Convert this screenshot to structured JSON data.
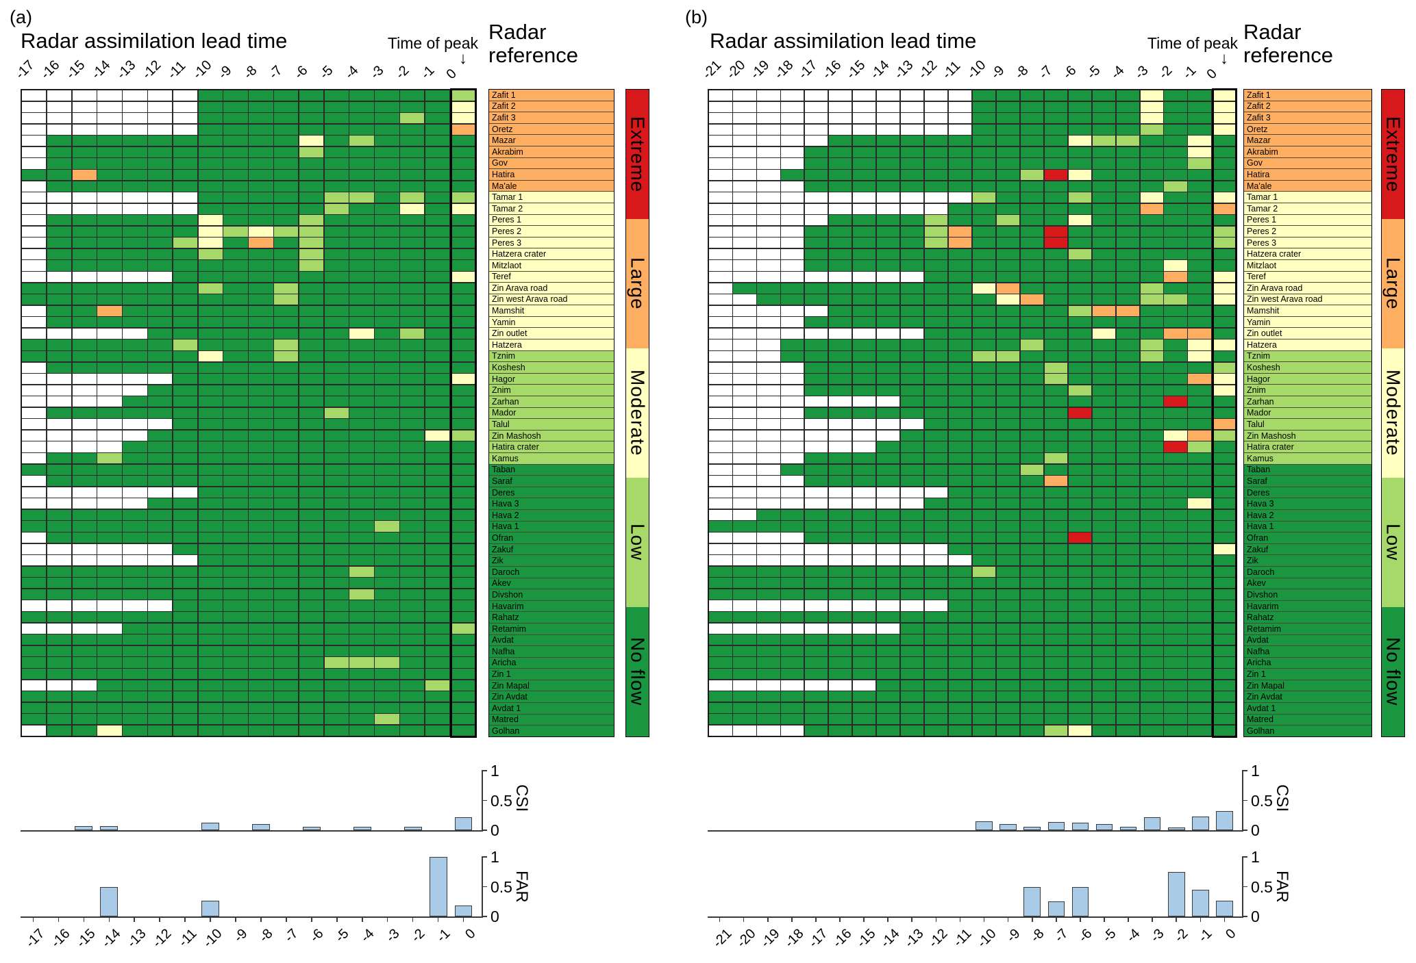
{
  "figure_tags": {
    "a": "(a)",
    "b": "(b)"
  },
  "titles": {
    "lead_time": "Radar assimilation lead time",
    "time_of_peak": "Time of peak",
    "ref_header_line1": "Radar",
    "ref_header_line2": "reference",
    "arrow_glyph": "↓"
  },
  "axis": {
    "ytick_labels": [
      "0",
      "0.5",
      "1"
    ],
    "yticks": [
      0,
      0.5,
      1
    ],
    "csi_label": "CSI",
    "far_label": "FAR"
  },
  "legend": {
    "labels": [
      "Extreme",
      "Large",
      "Moderate",
      "Low",
      "No flow"
    ],
    "colors": [
      "#D7191C",
      "#FDAE61",
      "#FFFFBF",
      "#A6D96A",
      "#1A9641"
    ]
  },
  "cell_colors": {
    "W": "#FFFFFF",
    "G": "#1A9641",
    "L": "#A6D96A",
    "Y": "#FFFFBF",
    "O": "#FDAE61",
    "R": "#D7191C"
  },
  "cell_meaning": {
    "W": "no data",
    "G": "No flow",
    "L": "Low",
    "Y": "Moderate",
    "O": "Large",
    "R": "Extreme"
  },
  "ref_colors": {
    "large": "#FDAE61",
    "moderate": "#FFFFBF",
    "low": "#A6D96A",
    "noflow": "#1A9641"
  },
  "stations": [
    {
      "name": "Zafit 1",
      "ref": "large"
    },
    {
      "name": "Zafit 2",
      "ref": "large"
    },
    {
      "name": "Zafit 3",
      "ref": "large"
    },
    {
      "name": "Oretz",
      "ref": "large"
    },
    {
      "name": "Mazar",
      "ref": "large"
    },
    {
      "name": "Akrabim",
      "ref": "large"
    },
    {
      "name": "Gov",
      "ref": "large"
    },
    {
      "name": "Hatira",
      "ref": "large"
    },
    {
      "name": "Ma'ale",
      "ref": "large"
    },
    {
      "name": "Tamar 1",
      "ref": "moderate"
    },
    {
      "name": "Tamar 2",
      "ref": "moderate"
    },
    {
      "name": "Peres 1",
      "ref": "moderate"
    },
    {
      "name": "Peres 2",
      "ref": "moderate"
    },
    {
      "name": "Peres 3",
      "ref": "moderate"
    },
    {
      "name": "Hatzera crater",
      "ref": "moderate"
    },
    {
      "name": "Mitzlaot",
      "ref": "moderate"
    },
    {
      "name": "Teref",
      "ref": "moderate"
    },
    {
      "name": "Zin Arava road",
      "ref": "moderate"
    },
    {
      "name": "Zin west Arava road",
      "ref": "moderate"
    },
    {
      "name": "Mamshit",
      "ref": "moderate"
    },
    {
      "name": "Yamin",
      "ref": "moderate"
    },
    {
      "name": "Zin outlet",
      "ref": "moderate"
    },
    {
      "name": "Hatzera",
      "ref": "moderate"
    },
    {
      "name": "Tznim",
      "ref": "low"
    },
    {
      "name": "Koshesh",
      "ref": "low"
    },
    {
      "name": "Hagor",
      "ref": "low"
    },
    {
      "name": "Znim",
      "ref": "low"
    },
    {
      "name": "Zarhan",
      "ref": "low"
    },
    {
      "name": "Mador",
      "ref": "low"
    },
    {
      "name": "Talul",
      "ref": "low"
    },
    {
      "name": "Zin Mashosh",
      "ref": "low"
    },
    {
      "name": "Hatira crater",
      "ref": "low"
    },
    {
      "name": "Kamus",
      "ref": "low"
    },
    {
      "name": "Taban",
      "ref": "noflow"
    },
    {
      "name": "Saraf",
      "ref": "noflow"
    },
    {
      "name": "Deres",
      "ref": "noflow"
    },
    {
      "name": "Hava 3",
      "ref": "noflow"
    },
    {
      "name": "Hava 2",
      "ref": "noflow"
    },
    {
      "name": "Hava 1",
      "ref": "noflow"
    },
    {
      "name": "Ofran",
      "ref": "noflow"
    },
    {
      "name": "Zakuf",
      "ref": "noflow"
    },
    {
      "name": "Zik",
      "ref": "noflow"
    },
    {
      "name": "Daroch",
      "ref": "noflow"
    },
    {
      "name": "Akev",
      "ref": "noflow"
    },
    {
      "name": "Divshon",
      "ref": "noflow"
    },
    {
      "name": "Havarim",
      "ref": "noflow"
    },
    {
      "name": "Rahatz",
      "ref": "noflow"
    },
    {
      "name": "Retamim",
      "ref": "noflow"
    },
    {
      "name": "Avdat",
      "ref": "noflow"
    },
    {
      "name": "Nafha",
      "ref": "noflow"
    },
    {
      "name": "Aricha",
      "ref": "noflow"
    },
    {
      "name": "Zin 1",
      "ref": "noflow"
    },
    {
      "name": "Zin Mapal",
      "ref": "noflow"
    },
    {
      "name": "Zin Avdat",
      "ref": "noflow"
    },
    {
      "name": "Avdat 1",
      "ref": "noflow"
    },
    {
      "name": "Matred",
      "ref": "noflow"
    },
    {
      "name": "Golhan",
      "ref": "noflow"
    }
  ],
  "chart_data": [
    {
      "type": "heatmap",
      "panel": "a",
      "title": "Radar assimilation lead time",
      "x": [
        -17,
        -16,
        -15,
        -14,
        -13,
        -12,
        -11,
        -10,
        -9,
        -8,
        -7,
        -6,
        -5,
        -4,
        -3,
        -2,
        -1,
        0
      ],
      "rows": [
        "WWWWWWWGGGGGGGGGGL",
        "WWWWWWWGGGGGGGGGGY",
        "WWWWWWWGGGGGGGGLGY",
        "WWWWWWWGGGGGGGGGGO",
        "WGGGGGGGGGGYGLGGGG",
        "WGGGGGGGGGGLGGGGGG",
        "WGGGGGGGGGGGGGGGGG",
        "GGOGGGGGGGGGGGGGGG",
        "WGGGGGGGGGGGGGGGGG",
        "WWWWWWWGGGGGLLGLGL",
        "WWWWWWWGGGGGLGGYGY",
        "WGGGGGGYGGGLGGGGGG",
        "WGGGGGGYLYLLGGGGGG",
        "WGGGGGLYGOGLGGGGGG",
        "WGGGGGGLGGGLGGGGGG",
        "WGGGGGGGGGGLGGGGGG",
        "WWWWWWGGGGGGGGGGGY",
        "GGGGGGGLGGLGGGGGGG",
        "GGGGGGGGGGLGGGGGGG",
        "WGGOGGGGGGGGGGGGGG",
        "WGGGGGGGGGGGGGGGGG",
        "WWWWWGGGGGGGGYGLGG",
        "GGGGGGLGGGLGGGGGGG",
        "GGGGGGGYGGLGGGGGGG",
        "WGGGGGGGGGGGGGGGGG",
        "WWWWWWGGGGGGGGGGGY",
        "WWWWWGGGGGGGGGGGGG",
        "WWWWGGGGGGGGGGGGGG",
        "WGGGGGGGGGGGLGGGGG",
        "WWWWWWGGGGGGGGGGGG",
        "WWWWWGGGGGGGGGGGYL",
        "WWWWGGGGGGGGGGGGGG",
        "WGGLGGGGGGGGGGGGGG",
        "GGGGGGGGGGGGGGGGGG",
        "WGGGGGGGGGGGGGGGGG",
        "WWWWWWWGGGGGGGGGGG",
        "WWWWWGGGGGGGGGGGGG",
        "GGGGGGGGGGGGGGGGGG",
        "GGGGGGGGGGGGGGLGGG",
        "WGGGGGGGGGGGGGGGGG",
        "WWWWWWGGGGGGGGGGGG",
        "WWWWWWWGGGGGGGGGGG",
        "GGGGGGGGGGGGGLGGGG",
        "GGGGGGGGGGGGGGGGGG",
        "GGGGGGGGGGGGGLGGGG",
        "WWWWWWGGGGGGGGGGGG",
        "GGGGGGGGGGGGGGGGGG",
        "WWWWGGGGGGGGGGGGGL",
        "GGGGGGGGGGGGGGGGGG",
        "GGGGGGGGGGGGGGGGGG",
        "GGGGGGGGGGGGLLLGGG",
        "GGGGGGGGGGGGGGGGGG",
        "WWWGGGGGGGGGGGGGLG",
        "GGGGGGGGGGGGGGGGGG",
        "GGGGGGGGGGGGGGGGGG",
        "GGGGGGGGGGGGGGLGGG",
        "WGGYGGGGGGGGGGGGGG"
      ]
    },
    {
      "type": "bar",
      "panel": "a",
      "name": "CSI",
      "ylim": [
        0,
        1
      ],
      "x": [
        -17,
        -16,
        -15,
        -14,
        -13,
        -12,
        -11,
        -10,
        -9,
        -8,
        -7,
        -6,
        -5,
        -4,
        -3,
        -2,
        -1,
        0
      ],
      "values": [
        0,
        0,
        0.07,
        0.07,
        0,
        0,
        0,
        0.13,
        0,
        0.1,
        0,
        0.06,
        0,
        0.06,
        0,
        0.06,
        0,
        0.22
      ]
    },
    {
      "type": "bar",
      "panel": "a",
      "name": "FAR",
      "ylim": [
        0,
        1
      ],
      "x": [
        -17,
        -16,
        -15,
        -14,
        -13,
        -12,
        -11,
        -10,
        -9,
        -8,
        -7,
        -6,
        -5,
        -4,
        -3,
        -2,
        -1,
        0
      ],
      "values": [
        0,
        0,
        0,
        0.5,
        0,
        0,
        0,
        0.27,
        0,
        0,
        0,
        0,
        0,
        0,
        0,
        0,
        1.0,
        0.18
      ]
    },
    {
      "type": "heatmap",
      "panel": "b",
      "title": "Radar assimilation lead time",
      "x": [
        -21,
        -20,
        -19,
        -18,
        -17,
        -16,
        -15,
        -14,
        -13,
        -12,
        -11,
        -10,
        -9,
        -8,
        -7,
        -6,
        -5,
        -4,
        -3,
        -2,
        -1,
        0
      ],
      "rows": [
        "WWWWWWWWWWWGGGGGGGYGGY",
        "WWWWWWWWWWWGGGGGGGYGGY",
        "WWWWWWWWWWWGGGGGGGYGGY",
        "WWWWWWWWWWWGGGGGGGLGGY",
        "WWWWWGGGGGGGGGGYLLGGYG",
        "WWWWGGGGGGGGGGGGGGGGYG",
        "WWWWGGGGGGGGGGGGGGGGLG",
        "WWWGGGGGGGGGGLRYGGGGGG",
        "WWWWGGGGGGGGGGGGGGGLGG",
        "WWWWWWWWWWWLGGGLGGYGGY",
        "WWWWWWWWWWGGGGGGGGOGGO",
        "WWWWWGGGGLGGLGGYGGGGGG",
        "WWWWGGGGGLOGGGRGGGGGGL",
        "WWWWGGGGGLOGGGRGGGGGGL",
        "WWWWGGGGGGGGGGGLGGGGGG",
        "WWWWGGGGGGGGGGGGGGGYGG",
        "WWWWWWWWWGGGGGGGGGGOGY",
        "WGGGGGGGGGGYOGGGGGLGGY",
        "WWGGGGGGGGGGYOGGGGLLGY",
        "WWWWWGGGGGGGGGGLOOGGGG",
        "WWWWGGGGGGGGGGGGGGGGGG",
        "WWWWWWWWWGGGGGGGYGGOOG",
        "WWWGGGGGGGGGGLGGGGLGYY",
        "WWWGGGGGGGGLLGGGGGLGYG",
        "WWWWGGGGGGGGGGLGGGGGGL",
        "WWWWGGGGGGGGGGLGGGGGOY",
        "WWWWGGGGGGGGGGGLGGGGGY",
        "WWWWWWWWGGGGGGGGGGGRGG",
        "WWWWGGGGGGGGGGGRGGGGGG",
        "WWWWWWWWWGGGGGGGGGGGGO",
        "WWWWWWWWGGGGGGGGGGGYOL",
        "WWWWWWWGGGGGGGGGGGGRLG",
        "WWWWGGGGGGGGGGLGGGGGGG",
        "WWWGGGGGGGGGGLGGGGGGGG",
        "WWWWGGGGGGGGGGOGGGGGGG",
        "WWWWWWWWWWGGGGGGGGGGGG",
        "WWWWWWWWWGGGGGGGGGGGYG",
        "WWGGGGGGGGGGGGGGGGGGGG",
        "GGGGGGGGGGGGGGGGGGGGGG",
        "WWWWGGGGGGGGGGGRGGGGGG",
        "WWWWWWWWWWGGGGGGGGGGGY",
        "WWWWWWWWWWWGGGGGGGGGGG",
        "GGGGGGGGGGGLGGGGGGGGGG",
        "GGGGGGGGGGGGGGGGGGGGGG",
        "GGGGGGGGGGGGGGGGGGGGGG",
        "WWWWWWWWWWGGGGGGGGGGGG",
        "GGGGGGGGGGGGGGGGGGGGGG",
        "WWWWWWWWGGGGGGGGGGGGGG",
        "GGGGGGGGGGGGGGGGGGGGGG",
        "GGGGGGGGGGGGGGGGGGGGGG",
        "GGGGGGGGGGGGGGGGGGGGGG",
        "GGGGGGGGGGGGGGGGGGGGGG",
        "WWWWWWWGGGGGGGGGGGGGGG",
        "GGGGGGGGGGGGGGGGGGGGGG",
        "GGGGGGGGGGGGGGGGGGGGGG",
        "GGGGGGGGGGGGGGGGGGGGGG",
        "WWWWGGGGGGGGGGLYGGGGGG"
      ]
    },
    {
      "type": "bar",
      "panel": "b",
      "name": "CSI",
      "ylim": [
        0,
        1
      ],
      "x": [
        -21,
        -20,
        -19,
        -18,
        -17,
        -16,
        -15,
        -14,
        -13,
        -12,
        -11,
        -10,
        -9,
        -8,
        -7,
        -6,
        -5,
        -4,
        -3,
        -2,
        -1,
        0
      ],
      "values": [
        0,
        0,
        0,
        0,
        0,
        0,
        0,
        0,
        0,
        0,
        0,
        0.15,
        0.1,
        0.06,
        0.14,
        0.13,
        0.1,
        0.06,
        0.22,
        0.05,
        0.23,
        0.32
      ]
    },
    {
      "type": "bar",
      "panel": "b",
      "name": "FAR",
      "ylim": [
        0,
        1
      ],
      "x": [
        -21,
        -20,
        -19,
        -18,
        -17,
        -16,
        -15,
        -14,
        -13,
        -12,
        -11,
        -10,
        -9,
        -8,
        -7,
        -6,
        -5,
        -4,
        -3,
        -2,
        -1,
        0
      ],
      "values": [
        0,
        0,
        0,
        0,
        0,
        0,
        0,
        0,
        0,
        0,
        0,
        0,
        0,
        0.5,
        0.25,
        0.5,
        0,
        0,
        0,
        0.75,
        0.45,
        0.27
      ]
    }
  ]
}
